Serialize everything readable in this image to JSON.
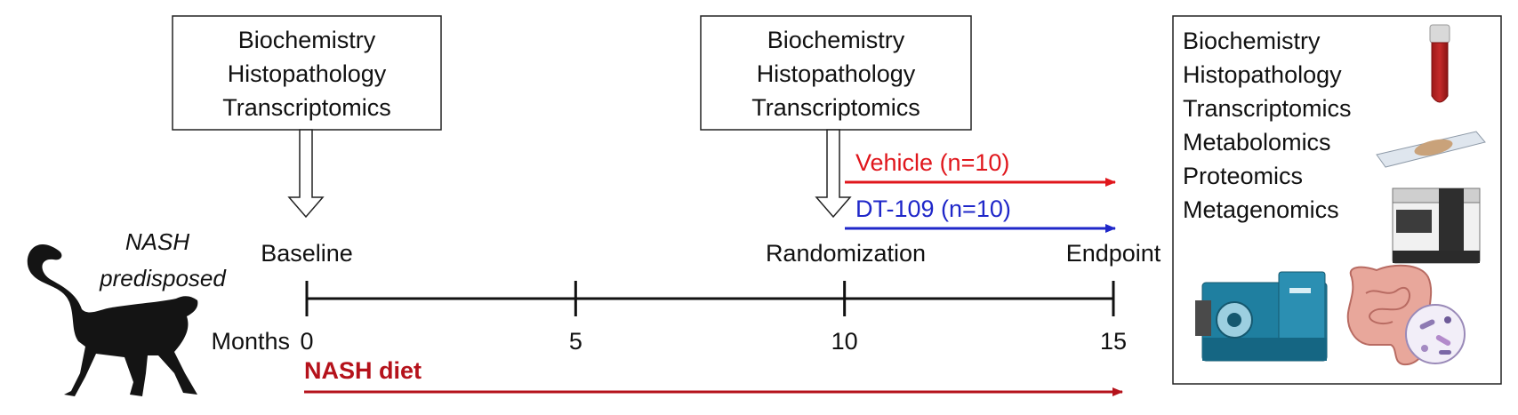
{
  "subject": {
    "label_line1": "NASH",
    "label_line2": "predisposed",
    "icon": "monkey-silhouette-icon"
  },
  "sample_boxes": {
    "baseline": [
      "Biochemistry",
      "Histopathology",
      "Transcriptomics"
    ],
    "randomization": [
      "Biochemistry",
      "Histopathology",
      "Transcriptomics"
    ]
  },
  "timeline": {
    "unit_label": "Months",
    "ticks": [
      "0",
      "5",
      "10",
      "15"
    ],
    "tick_values": [
      0,
      5,
      10,
      15
    ],
    "milestones": {
      "baseline": "Baseline",
      "randomization": "Randomization",
      "endpoint": "Endpoint"
    }
  },
  "arms": [
    {
      "label": "Vehicle (n=10)",
      "color": "#e0161c"
    },
    {
      "label": "DT-109 (n=10)",
      "color": "#1f27c9"
    }
  ],
  "diet": {
    "label": "NASH diet",
    "color": "#b5121b"
  },
  "endpoint_panel": {
    "analyses": [
      "Biochemistry",
      "Histopathology",
      "Transcriptomics",
      "Metabolomics",
      "Proteomics",
      "Metagenomics"
    ],
    "icons": [
      "blood-tube-icon",
      "tissue-slide-icon",
      "sequencer-icon",
      "mass-spectrometer-icon",
      "gut-microbiome-icon"
    ]
  },
  "colors": {
    "axis": "#111111",
    "box_border": "#222222"
  }
}
